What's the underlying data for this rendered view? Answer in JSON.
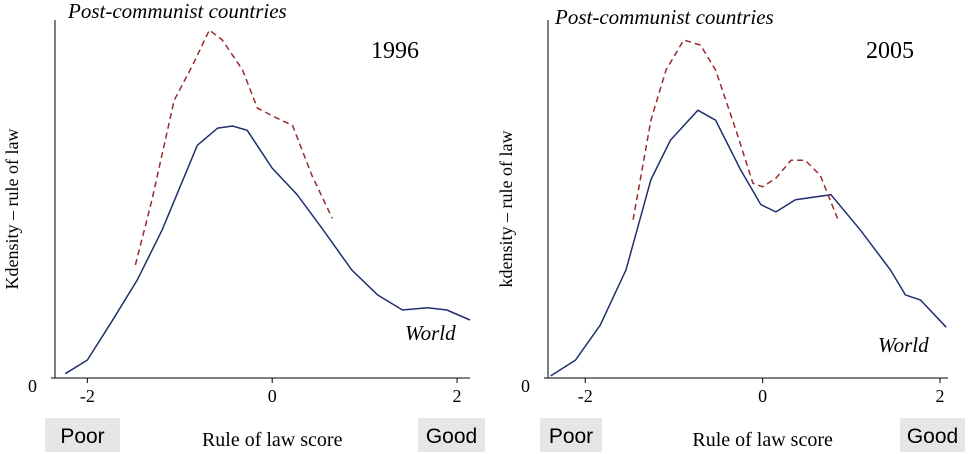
{
  "chart_data": [
    {
      "type": "line",
      "title": "1996",
      "x_label": "Rule of law score",
      "y_label": "Kdensity – rule of law",
      "x_low_label": "Poor",
      "x_high_label": "Good",
      "xlim": [
        -2.35,
        2.14
      ],
      "xticks": [
        -2,
        0,
        2
      ],
      "ylim": [
        0,
        0.5
      ],
      "yticks": [
        0
      ],
      "series": [
        {
          "name": "World",
          "color": "#1f2f6e",
          "dashed": false,
          "x": [
            -2.24,
            -2.0,
            -1.73,
            -1.46,
            -1.19,
            -0.81,
            -0.59,
            -0.43,
            -0.27,
            0,
            0.27,
            0.54,
            0.86,
            1.14,
            1.41,
            1.68,
            1.89,
            2.14
          ],
          "values": [
            0.006,
            0.025,
            0.08,
            0.137,
            0.207,
            0.325,
            0.349,
            0.352,
            0.346,
            0.293,
            0.256,
            0.209,
            0.151,
            0.116,
            0.095,
            0.098,
            0.095,
            0.081
          ]
        },
        {
          "name": "Post-communist countries",
          "color": "#9b2a2a",
          "dashed": true,
          "x": [
            -1.48,
            -1.3,
            -1.06,
            -0.86,
            -0.68,
            -0.54,
            -0.32,
            -0.16,
            0.05,
            0.22,
            0.43,
            0.65
          ],
          "values": [
            0.158,
            0.249,
            0.388,
            0.437,
            0.486,
            0.472,
            0.43,
            0.377,
            0.363,
            0.353,
            0.283,
            0.223
          ]
        }
      ]
    },
    {
      "type": "line",
      "title": "2005",
      "x_label": "Rule of law score",
      "y_label": "kdensity – rule of law",
      "x_low_label": "Poor",
      "x_high_label": "Good",
      "xlim": [
        -2.42,
        2.09
      ],
      "xticks": [
        -2,
        0,
        2
      ],
      "ylim": [
        0,
        0.5
      ],
      "yticks": [
        0
      ],
      "series": [
        {
          "name": "World",
          "color": "#1f2f6e",
          "dashed": false,
          "x": [
            -2.39,
            -2.11,
            -1.83,
            -1.54,
            -1.26,
            -1.04,
            -0.73,
            -0.53,
            -0.25,
            -0.02,
            0.15,
            0.37,
            0.77,
            1.1,
            1.44,
            1.61,
            1.78,
            2.07
          ],
          "values": [
            0.003,
            0.025,
            0.074,
            0.151,
            0.277,
            0.332,
            0.374,
            0.36,
            0.291,
            0.242,
            0.232,
            0.249,
            0.256,
            0.207,
            0.151,
            0.116,
            0.109,
            0.071
          ]
        },
        {
          "name": "Post-communist countries",
          "color": "#9b2a2a",
          "dashed": true,
          "x": [
            -1.46,
            -1.26,
            -1.09,
            -0.89,
            -0.7,
            -0.53,
            -0.3,
            -0.11,
            0,
            0.15,
            0.32,
            0.48,
            0.65,
            0.86
          ],
          "values": [
            0.221,
            0.36,
            0.43,
            0.472,
            0.465,
            0.43,
            0.346,
            0.272,
            0.267,
            0.279,
            0.304,
            0.304,
            0.283,
            0.218
          ]
        }
      ]
    }
  ]
}
